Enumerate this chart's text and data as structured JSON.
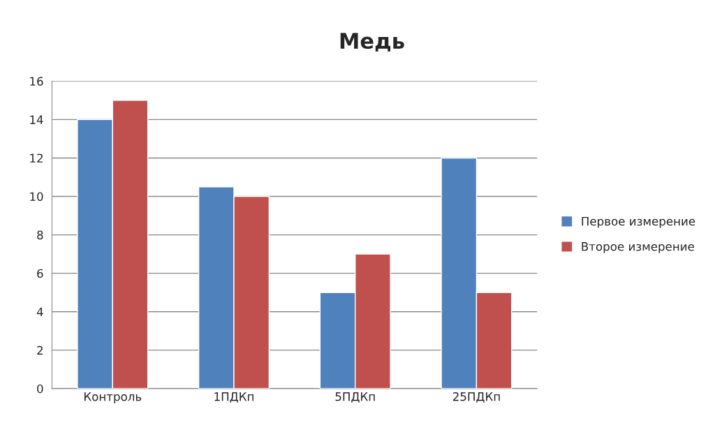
{
  "chart_data": {
    "type": "bar",
    "title": "Медь",
    "categories": [
      "Контроль",
      "1ПДКп",
      "5ПДКп",
      "25ПДКп"
    ],
    "series": [
      {
        "name": "Первое измерение",
        "color": "#4f81bd",
        "values": [
          14,
          10.5,
          5,
          12
        ]
      },
      {
        "name": "Второе измерение",
        "color": "#c0504d",
        "values": [
          15,
          10,
          7,
          5
        ]
      }
    ],
    "ylim": [
      0,
      16
    ],
    "yticks": [
      0,
      2,
      4,
      6,
      8,
      10,
      12,
      14,
      16
    ],
    "grid": "y",
    "legend": "right"
  }
}
